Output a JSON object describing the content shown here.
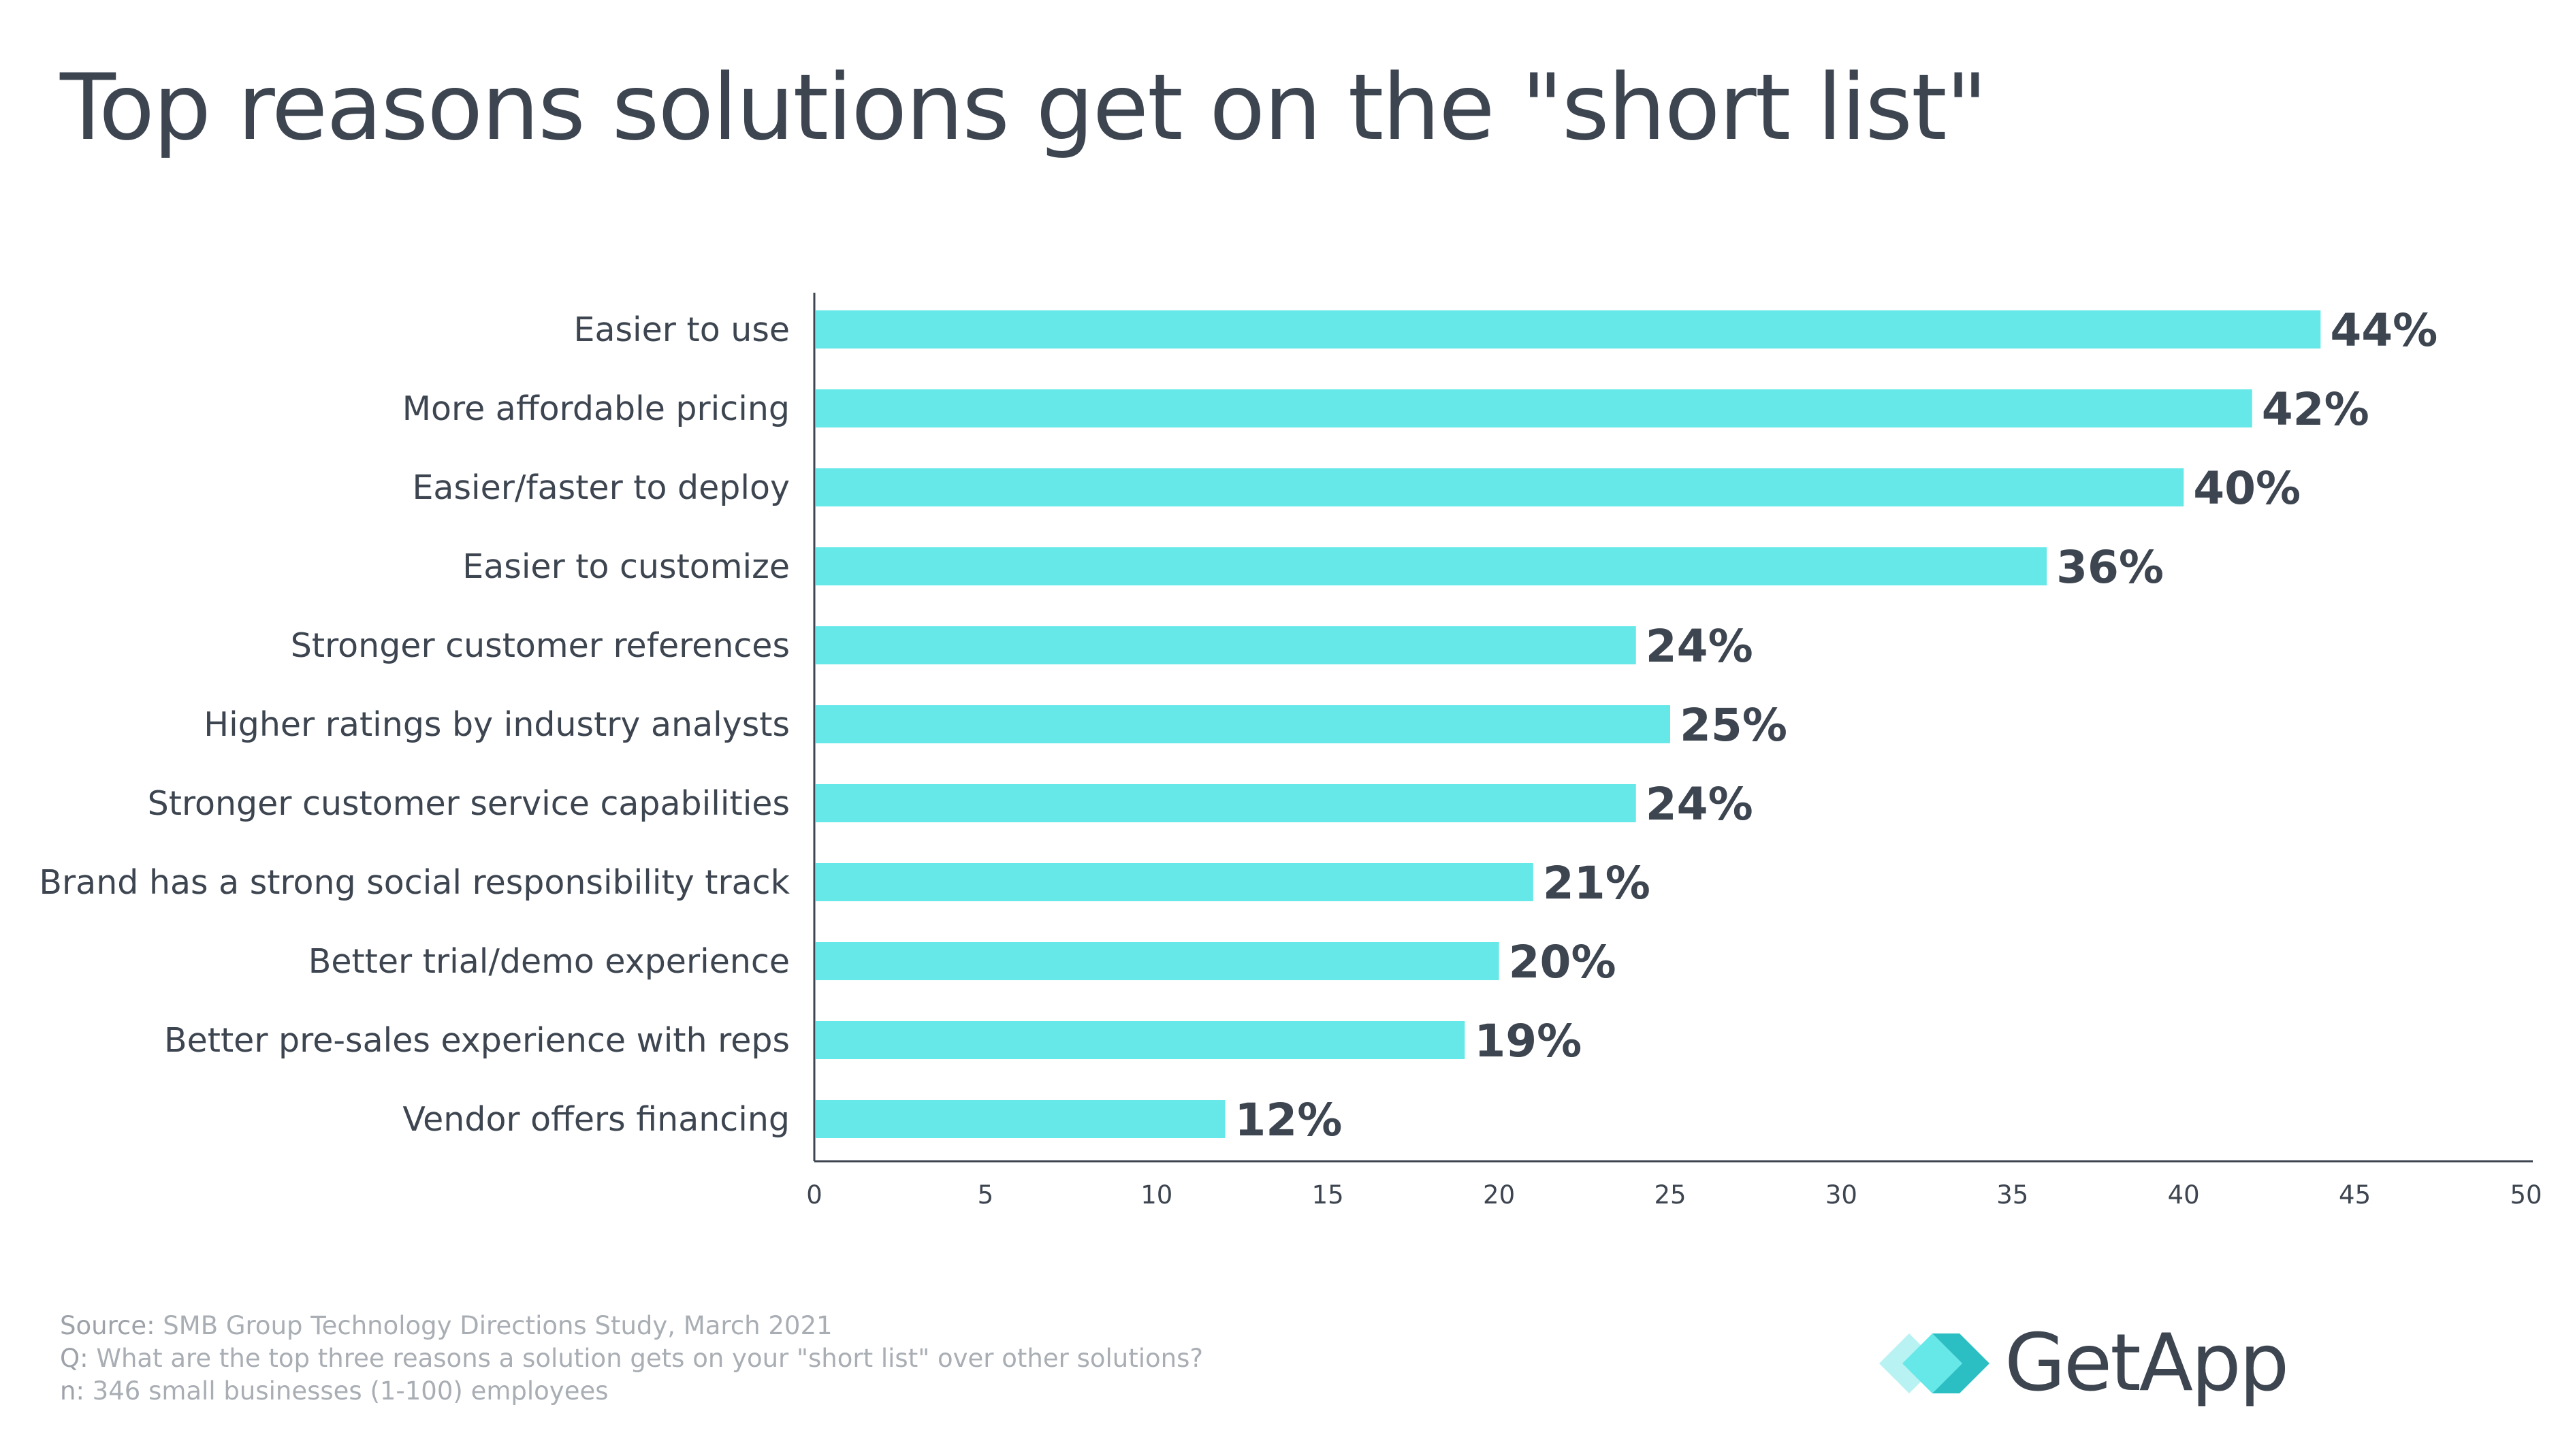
{
  "chart_data": {
    "type": "bar",
    "orientation": "horizontal",
    "title": "Top reasons solutions get on the \"short list\"",
    "categories": [
      "Easier to use",
      "More affordable pricing",
      "Easier/faster to deploy",
      "Easier to customize",
      "Stronger customer references",
      "Higher ratings by industry analysts",
      "Stronger customer service capabilities",
      "Brand has a strong social responsibility track",
      "Better trial/demo experience",
      "Better pre-sales experience with reps",
      "Vendor offers financing"
    ],
    "values": [
      44,
      42,
      40,
      36,
      24,
      25,
      24,
      21,
      20,
      19,
      12
    ],
    "data_labels": [
      "44%",
      "42%",
      "40%",
      "36%",
      "24%",
      "25%",
      "24%",
      "21%",
      "20%",
      "19%",
      "12%"
    ],
    "x_ticks": [
      "0",
      "5",
      "10",
      "15",
      "20",
      "25",
      "30",
      "35",
      "40",
      "45",
      "50"
    ],
    "xlim": [
      0,
      50
    ],
    "grid": false,
    "legend": "none",
    "bar_color": "#66e8e8",
    "text_color": "#3d4550"
  },
  "footnotes": {
    "source_key": "Source:",
    "source_text": " SMB Group Technology Directions Study, March 2021",
    "q_key": "Q:",
    "q_text": " What are the top three reasons a solution gets on your \"short list\" over other solutions?",
    "n_key": "n:",
    "n_text": " 346 small businesses (1-100) employees"
  },
  "logo": {
    "text": "GetApp",
    "icon": "getapp-chevrons-icon",
    "colors": [
      "#b8f2f2",
      "#66e8e8",
      "#2bbfc4"
    ]
  }
}
